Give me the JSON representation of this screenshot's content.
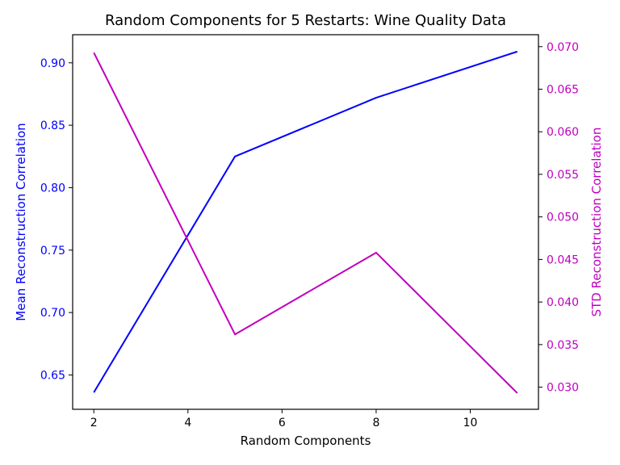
{
  "chart_data": {
    "type": "line",
    "title": "Random Components for 5 Restarts: Wine Quality Data",
    "xlabel": "Random Components",
    "x": [
      2,
      5,
      8,
      11
    ],
    "xlim": [
      1.55,
      11.45
    ],
    "xticks": [
      2,
      4,
      6,
      8,
      10
    ],
    "left_axis": {
      "label": "Mean Reconstruction Correlation",
      "color": "#0000ff",
      "ylim": [
        0.6225,
        0.9225
      ],
      "ticks": [
        0.65,
        0.7,
        0.75,
        0.8,
        0.85,
        0.9
      ],
      "tick_labels": [
        "0.65",
        "0.70",
        "0.75",
        "0.80",
        "0.85",
        "0.90"
      ]
    },
    "right_axis": {
      "label": "STD Reconstruction Correlation",
      "color": "#bf00bf",
      "ylim": [
        0.0274,
        0.0714
      ],
      "ticks": [
        0.03,
        0.035,
        0.04,
        0.045,
        0.05,
        0.055,
        0.06,
        0.065,
        0.07
      ],
      "tick_labels": [
        "0.030",
        "0.035",
        "0.040",
        "0.045",
        "0.050",
        "0.055",
        "0.060",
        "0.065",
        "0.070"
      ]
    },
    "series": [
      {
        "axis": "left",
        "color": "#0000ff",
        "values": [
          0.636,
          0.825,
          0.872,
          0.909
        ]
      },
      {
        "axis": "right",
        "color": "#bf00bf",
        "values": [
          0.0693,
          0.0362,
          0.0458,
          0.0293
        ]
      }
    ],
    "grid": false
  }
}
